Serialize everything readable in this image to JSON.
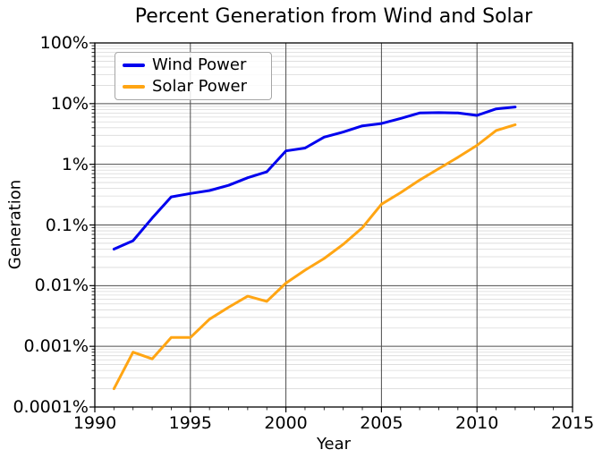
{
  "figure": {
    "title": "Percent Generation from Wind and Solar"
  },
  "chart_data": {
    "type": "line",
    "title": "Percent Generation from Wind and Solar",
    "xlabel": "Year",
    "ylabel": "Generation",
    "x_range": [
      1990,
      2015
    ],
    "y_scale": "log",
    "y_unit": "percent",
    "ylim_percent": [
      0.0001,
      100
    ],
    "x_ticks": [
      1990,
      1995,
      2000,
      2005,
      2010,
      2015
    ],
    "x_minor_tick_step": 1,
    "y_ticks": [
      {
        "value": 100,
        "label": "100%"
      },
      {
        "value": 10,
        "label": "10%"
      },
      {
        "value": 1,
        "label": "1%"
      },
      {
        "value": 0.1,
        "label": "0.1%"
      },
      {
        "value": 0.01,
        "label": "0.01%"
      },
      {
        "value": 0.001,
        "label": "0.001%"
      },
      {
        "value": 0.0001,
        "label": "0.0001%"
      }
    ],
    "grid": {
      "major": true,
      "minor": true
    },
    "legend": {
      "position": "upper left",
      "entries": [
        "Wind Power",
        "Solar Power"
      ]
    },
    "series": [
      {
        "name": "Wind Power",
        "color": "#0000ee",
        "x": [
          1991,
          1992,
          1993,
          1994,
          1995,
          1996,
          1997,
          1998,
          1999,
          2000,
          2001,
          2002,
          2003,
          2004,
          2005,
          2006,
          2007,
          2008,
          2009,
          2010,
          2011,
          2012
        ],
        "values": [
          0.04,
          0.055,
          0.13,
          0.29,
          0.33,
          0.37,
          0.45,
          0.6,
          0.75,
          1.66,
          1.85,
          2.8,
          3.4,
          4.3,
          4.7,
          5.7,
          7.0,
          7.1,
          7.0,
          6.4,
          8.2,
          8.8
        ]
      },
      {
        "name": "Solar Power",
        "color": "#ffa513",
        "x": [
          1991,
          1992,
          1993,
          1994,
          1995,
          1996,
          1997,
          1998,
          1999,
          2000,
          2001,
          2002,
          2003,
          2004,
          2005,
          2006,
          2007,
          2008,
          2009,
          2010,
          2011,
          2012
        ],
        "values": [
          0.0002,
          0.0008,
          0.00062,
          0.0014,
          0.0014,
          0.0028,
          0.0044,
          0.0067,
          0.0055,
          0.011,
          0.018,
          0.028,
          0.048,
          0.09,
          0.22,
          0.34,
          0.55,
          0.85,
          1.3,
          2.05,
          3.6,
          4.5
        ]
      }
    ]
  },
  "colors": {
    "background": "#ffffff",
    "axis": "#000000",
    "grid_major": "#4d4d4d",
    "grid_minor": "#d9d9d9",
    "legend_border": "#a6a6a6"
  }
}
